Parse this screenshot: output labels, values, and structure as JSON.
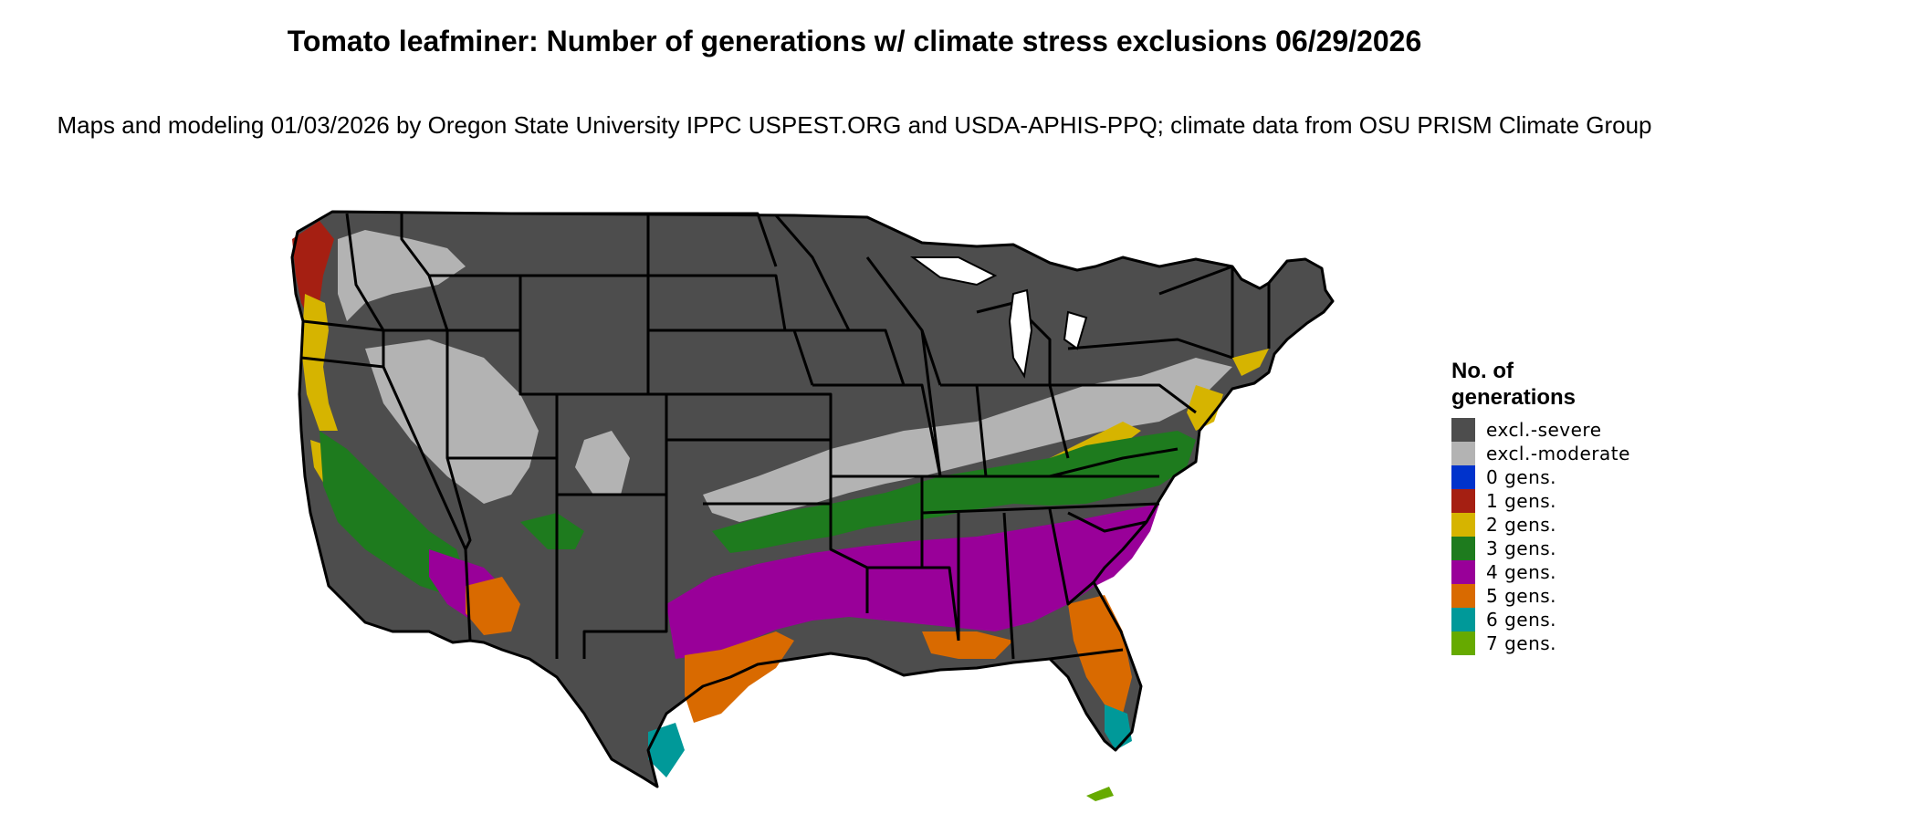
{
  "title": "Tomato leafminer: Number of generations w/ climate stress exclusions 06/29/2026",
  "subtitle": "Maps and modeling 01/03/2026 by Oregon State University IPPC USPEST.ORG and USDA-APHIS-PPQ; climate data from OSU PRISM Climate Group",
  "legend": {
    "title": "No. of generations",
    "items": [
      {
        "label": "excl.-severe",
        "color": "#4d4d4d"
      },
      {
        "label": "excl.-moderate",
        "color": "#b3b3b3"
      },
      {
        "label": "0 gens.",
        "color": "#0033cc"
      },
      {
        "label": "1 gens.",
        "color": "#a51f12"
      },
      {
        "label": "2 gens.",
        "color": "#d6b400"
      },
      {
        "label": "3 gens.",
        "color": "#1e7b1e"
      },
      {
        "label": "4 gens.",
        "color": "#990099"
      },
      {
        "label": "5 gens.",
        "color": "#d96a00"
      },
      {
        "label": "6 gens.",
        "color": "#009999"
      },
      {
        "label": "7 gens.",
        "color": "#66aa00"
      }
    ]
  }
}
